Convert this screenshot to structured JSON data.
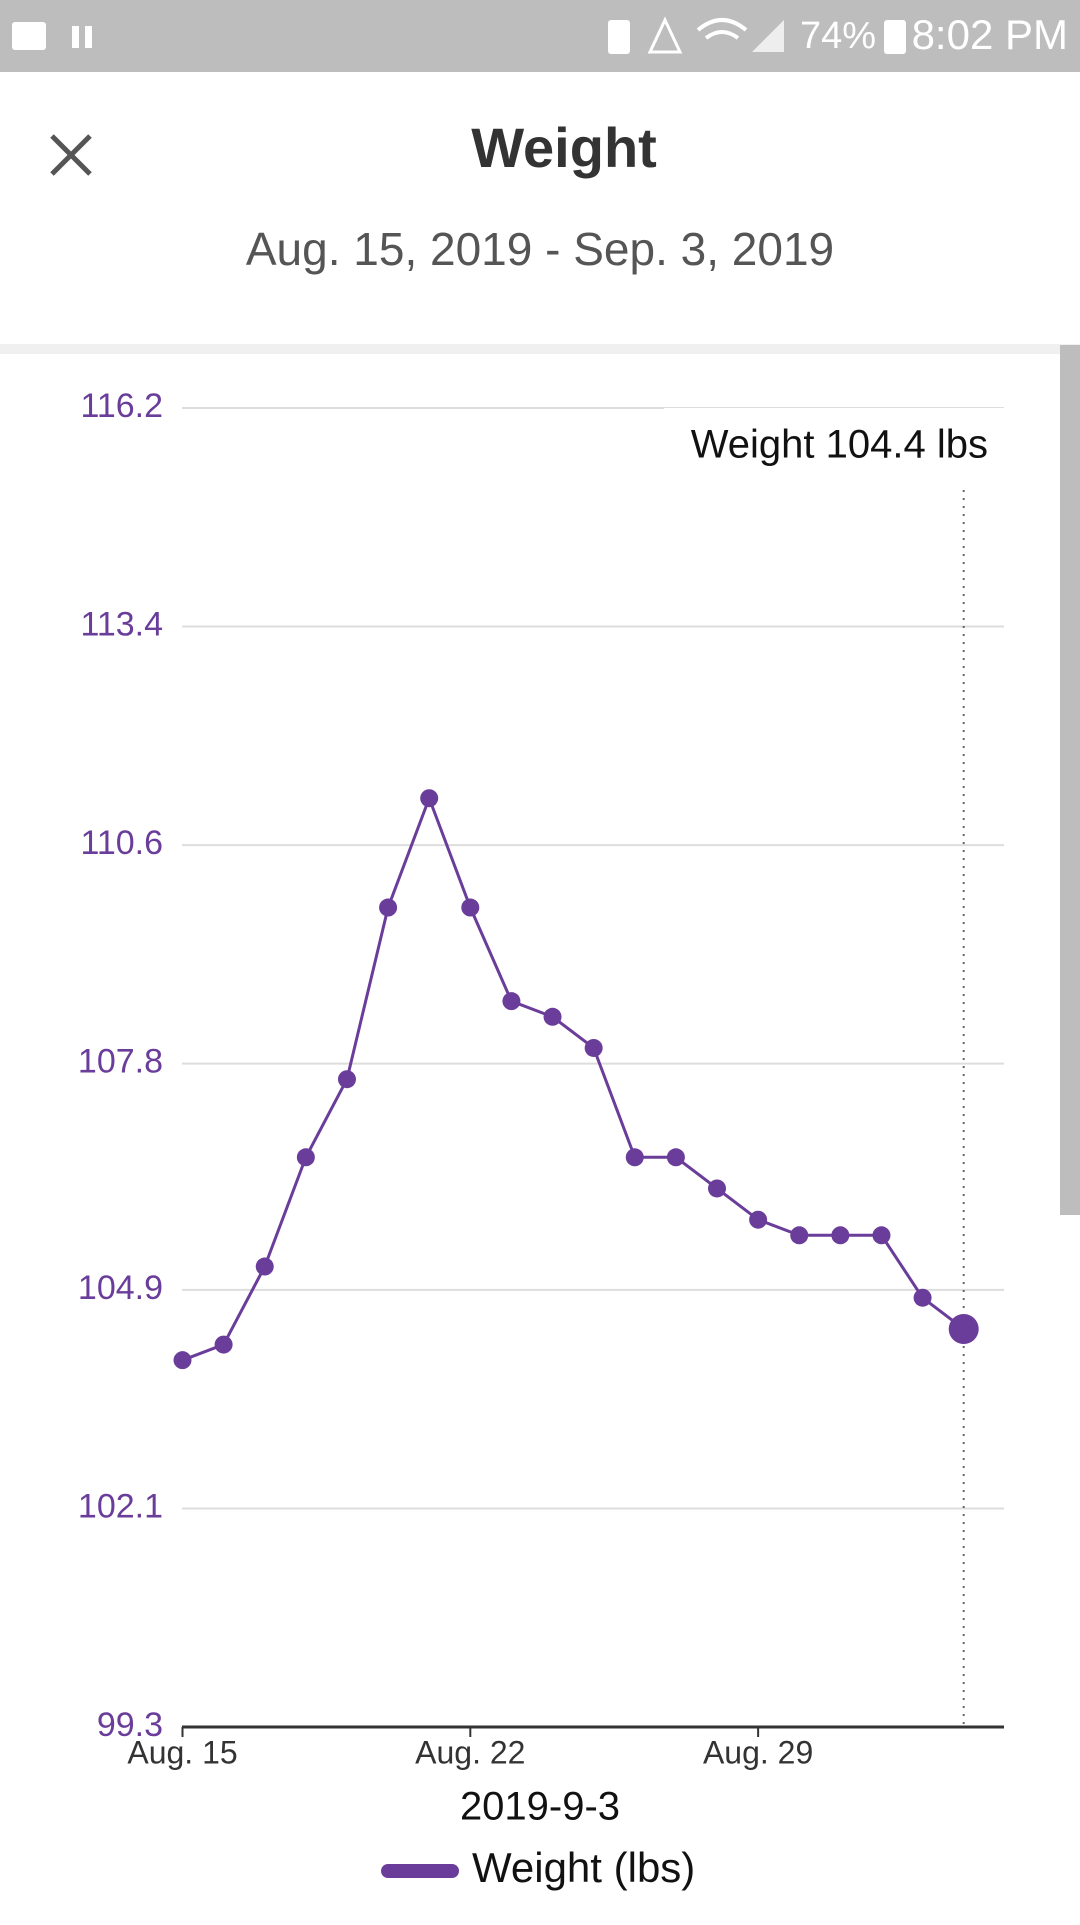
{
  "status_bar": {
    "battery": "74%",
    "time": "8:02 PM"
  },
  "header": {
    "title": "Weight",
    "date_range": "Aug. 15, 2019 - Sep. 3, 2019"
  },
  "chart_data": {
    "type": "line",
    "categories": [
      "Aug. 15",
      null,
      null,
      null,
      null,
      null,
      null,
      "Aug. 22",
      null,
      null,
      null,
      null,
      null,
      null,
      "Aug. 29",
      null,
      null,
      null,
      null,
      null
    ],
    "series": [
      {
        "name": "Weight (lbs)",
        "color": "#6a3d9a",
        "values": [
          104.0,
          104.2,
          105.2,
          106.6,
          107.6,
          109.8,
          111.2,
          109.8,
          108.6,
          108.4,
          108.0,
          106.6,
          106.6,
          106.2,
          105.8,
          105.6,
          105.6,
          105.6,
          104.8,
          104.4
        ]
      }
    ],
    "ylim": [
      99.3,
      116.2
    ],
    "yticks": [
      99.3,
      102.1,
      104.9,
      107.8,
      110.6,
      113.4,
      116.2
    ],
    "grid": true,
    "selected_index": 19,
    "tooltip": "Weight 104.4 lbs",
    "x_label": "2019-9-3"
  }
}
